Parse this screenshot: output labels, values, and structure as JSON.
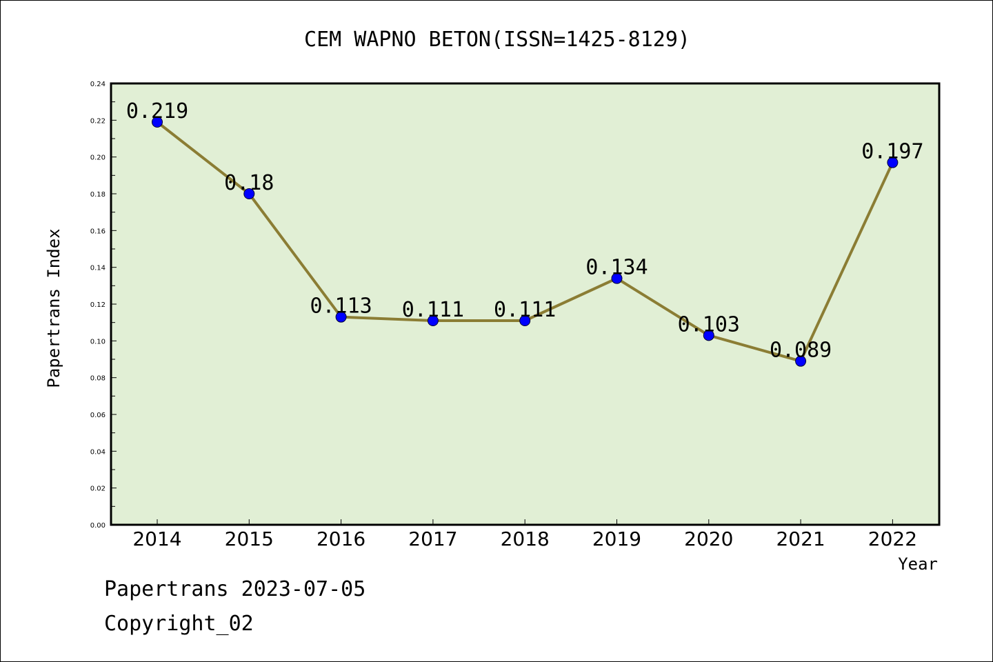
{
  "chart_data": {
    "type": "line",
    "title": "CEM WAPNO BETON(ISSN=1425-8129)",
    "xlabel": "Year",
    "ylabel": "Papertrans Index",
    "categories": [
      "2014",
      "2015",
      "2016",
      "2017",
      "2018",
      "2019",
      "2020",
      "2021",
      "2022"
    ],
    "series": [
      {
        "values": [
          0.219,
          0.18,
          0.113,
          0.111,
          0.111,
          0.134,
          0.103,
          0.089,
          0.197
        ],
        "labels": [
          "0.219",
          "0.18",
          "0.113",
          "0.111",
          "0.111",
          "0.134",
          "0.103",
          "0.089",
          "0.197"
        ]
      }
    ],
    "ylim": [
      0,
      0.24
    ],
    "yticks": [
      "0.00",
      "0.02",
      "0.04",
      "0.06",
      "0.08",
      "0.10",
      "0.12",
      "0.14",
      "0.16",
      "0.18",
      "0.20",
      "0.22",
      "0.24"
    ],
    "grid": false,
    "colors": {
      "plot_background": "#e1efd5",
      "line": "#8b7d34",
      "marker": "#0000ff"
    }
  },
  "footer": {
    "source": "Papertrans 2023-07-05",
    "copyright": "Copyright_02"
  }
}
